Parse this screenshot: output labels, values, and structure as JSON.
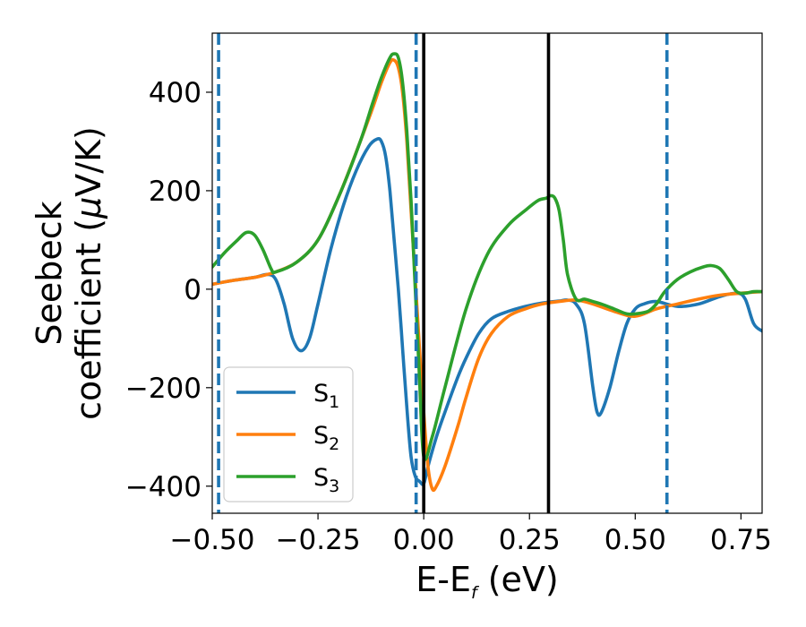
{
  "chart_data": {
    "type": "line",
    "title": "",
    "xlabel_main": "E-E",
    "xlabel_sub": "f",
    "xlabel_unit": " (eV)",
    "ylabel_line1": "Seebeck",
    "ylabel_line2": "coefficient  (",
    "ylabel_mu": "μ",
    "ylabel_unit": "V/K)",
    "xlim": [
      -0.5,
      0.8
    ],
    "ylim": [
      -455,
      520
    ],
    "xticks": [
      -0.5,
      -0.25,
      0.0,
      0.25,
      0.5,
      0.75
    ],
    "xtick_labels": [
      "−0.50",
      "−0.25",
      "0.00",
      "0.25",
      "0.50",
      "0.75"
    ],
    "yticks": [
      -400,
      -200,
      0,
      200,
      400
    ],
    "ytick_labels": [
      "−400",
      "−200",
      "0",
      "200",
      "400"
    ],
    "grid": false,
    "legend_position": "lower-left",
    "series": [
      {
        "name": "S",
        "name_sub": "1",
        "color": "#1f77b4",
        "x": [
          -0.5,
          -0.45,
          -0.4,
          -0.37,
          -0.35,
          -0.33,
          -0.31,
          -0.29,
          -0.27,
          -0.25,
          -0.22,
          -0.19,
          -0.16,
          -0.13,
          -0.11,
          -0.1,
          -0.09,
          -0.08,
          -0.07,
          -0.06,
          -0.05,
          -0.04,
          -0.03,
          -0.02,
          -0.01,
          0.0,
          0.01,
          0.03,
          0.05,
          0.08,
          0.1,
          0.13,
          0.16,
          0.2,
          0.24,
          0.28,
          0.32,
          0.34,
          0.36,
          0.38,
          0.4,
          0.41,
          0.42,
          0.44,
          0.46,
          0.48,
          0.5,
          0.52,
          0.55,
          0.6,
          0.65,
          0.7,
          0.74,
          0.76,
          0.78,
          0.8
        ],
        "y": [
          10,
          18,
          24,
          30,
          20,
          -30,
          -100,
          -125,
          -100,
          -30,
          80,
          170,
          240,
          290,
          305,
          300,
          270,
          200,
          100,
          0,
          -120,
          -240,
          -340,
          -380,
          -390,
          -395,
          -360,
          -300,
          -250,
          -180,
          -140,
          -90,
          -60,
          -45,
          -35,
          -28,
          -24,
          -22,
          -30,
          -70,
          -200,
          -250,
          -250,
          -200,
          -130,
          -70,
          -40,
          -30,
          -25,
          -35,
          -30,
          -15,
          -8,
          -20,
          -70,
          -85
        ]
      },
      {
        "name": "S",
        "name_sub": "2",
        "color": "#ff7f0e",
        "x": [
          -0.5,
          -0.45,
          -0.4,
          -0.37,
          -0.35,
          -0.3,
          -0.25,
          -0.2,
          -0.15,
          -0.12,
          -0.1,
          -0.08,
          -0.07,
          -0.06,
          -0.05,
          -0.04,
          -0.03,
          -0.02,
          -0.01,
          0.0,
          0.01,
          0.02,
          0.03,
          0.05,
          0.08,
          0.1,
          0.13,
          0.16,
          0.2,
          0.24,
          0.28,
          0.32,
          0.36,
          0.4,
          0.45,
          0.5,
          0.55,
          0.6,
          0.65,
          0.7,
          0.75,
          0.8
        ],
        "y": [
          10,
          18,
          24,
          30,
          35,
          55,
          100,
          190,
          300,
          370,
          420,
          460,
          465,
          450,
          400,
          300,
          160,
          20,
          -120,
          -250,
          -360,
          -405,
          -400,
          -360,
          -280,
          -220,
          -140,
          -90,
          -55,
          -40,
          -30,
          -25,
          -22,
          -30,
          -45,
          -55,
          -40,
          -30,
          -20,
          -12,
          -8,
          -5
        ]
      },
      {
        "name": "S",
        "name_sub": "3",
        "color": "#2ca02c",
        "x": [
          -0.5,
          -0.47,
          -0.44,
          -0.42,
          -0.4,
          -0.38,
          -0.36,
          -0.35,
          -0.3,
          -0.25,
          -0.2,
          -0.15,
          -0.12,
          -0.1,
          -0.08,
          -0.07,
          -0.06,
          -0.05,
          -0.04,
          -0.03,
          -0.02,
          -0.01,
          0.0,
          0.02,
          0.05,
          0.1,
          0.15,
          0.2,
          0.24,
          0.27,
          0.29,
          0.3,
          0.31,
          0.32,
          0.33,
          0.34,
          0.36,
          0.38,
          0.4,
          0.42,
          0.45,
          0.48,
          0.5,
          0.53,
          0.55,
          0.57,
          0.6,
          0.63,
          0.66,
          0.68,
          0.7,
          0.72,
          0.74,
          0.76,
          0.78,
          0.8
        ],
        "y": [
          45,
          75,
          100,
          115,
          110,
          80,
          40,
          35,
          55,
          100,
          190,
          300,
          380,
          430,
          470,
          478,
          470,
          420,
          320,
          180,
          0,
          -180,
          -340,
          -300,
          -200,
          -40,
          70,
          130,
          160,
          180,
          185,
          190,
          185,
          160,
          100,
          30,
          -20,
          -20,
          -25,
          -30,
          -40,
          -50,
          -50,
          -45,
          -30,
          -5,
          20,
          35,
          45,
          48,
          42,
          20,
          -5,
          -8,
          -5,
          -5
        ]
      }
    ],
    "vlines_solid": [
      0.0,
      0.295
    ],
    "vlines_dashed": [
      -0.485,
      -0.018,
      0.575
    ]
  }
}
